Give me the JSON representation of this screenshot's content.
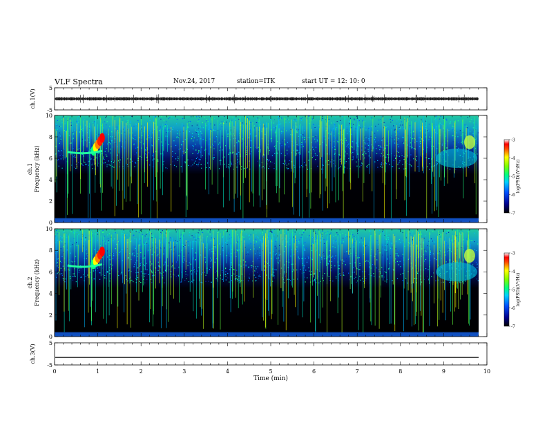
{
  "header": {
    "title": "VLF Spectra",
    "date": "Nov.24, 2017",
    "station": "station=ITK",
    "start": "start  UT =   12: 10: 0"
  },
  "chart_data": [
    {
      "type": "line",
      "panel": "ch1-waveform",
      "ylabel": "ch.1(V)",
      "ylim": [
        -5,
        5
      ],
      "y_ticks": [
        "5",
        "-5"
      ],
      "xlim": [
        0,
        10
      ],
      "description_level": 0
    },
    {
      "type": "heatmap",
      "panel": "ch1-spectrogram",
      "ylabel_channel": "ch.1",
      "ylabel": "Frequency  (kHz)",
      "ylim": [
        0,
        10
      ],
      "y_ticks": [
        "0",
        "2",
        "4",
        "6",
        "8",
        "10"
      ],
      "xlim": [
        0,
        10
      ],
      "colorbar": {
        "label": "log(PSD)(V²/Hz)",
        "range": [
          -7,
          -3
        ],
        "ticks": [
          "-3",
          "-4",
          "-5",
          "-6",
          "-7"
        ]
      }
    },
    {
      "type": "heatmap",
      "panel": "ch2-spectrogram",
      "ylabel_channel": "ch.2",
      "ylabel": "Frequency  (kHz)",
      "ylim": [
        0,
        10
      ],
      "y_ticks": [
        "0",
        "2",
        "4",
        "6",
        "8",
        "10"
      ],
      "xlim": [
        0,
        10
      ],
      "colorbar": {
        "label": "log(PSD)(V²/Hz)",
        "range": [
          -7,
          -3
        ],
        "ticks": [
          "-3",
          "-4",
          "-5",
          "-6",
          "-7"
        ]
      }
    },
    {
      "type": "line",
      "panel": "ch3-waveform",
      "ylabel": "ch.3(V)",
      "ylim": [
        -5,
        5
      ],
      "y_ticks": [
        "5",
        "-5"
      ],
      "xlim": [
        0,
        10
      ],
      "x_ticks": [
        "0",
        "1",
        "2",
        "3",
        "4",
        "5",
        "6",
        "7",
        "8",
        "9",
        "10"
      ],
      "xlabel": "Time  (min)"
    }
  ]
}
